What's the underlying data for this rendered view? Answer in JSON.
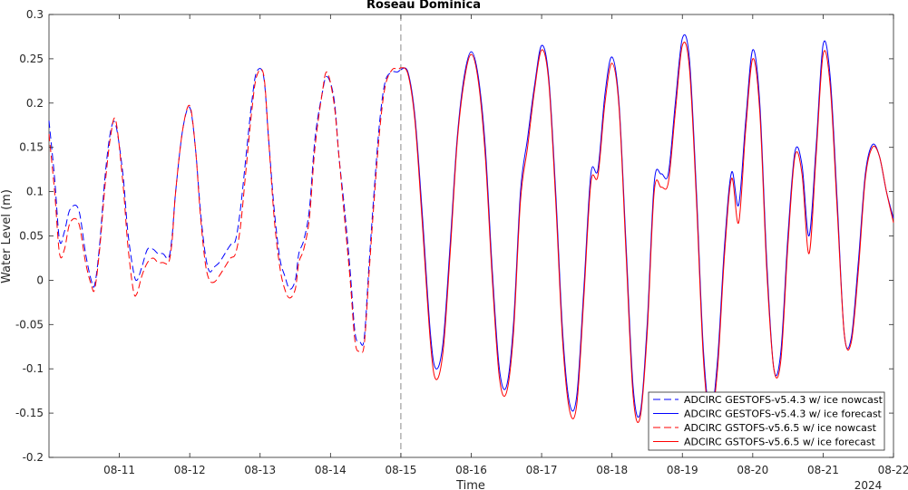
{
  "chart_data": {
    "type": "line",
    "title": "Roseau Dominica",
    "xlabel": "Time",
    "ylabel": "Water Level (m)",
    "ylim": [
      -0.2,
      0.3
    ],
    "yticks": [
      -0.2,
      -0.15,
      -0.1,
      -0.05,
      0,
      0.05,
      0.1,
      0.15,
      0.2,
      0.25,
      0.3
    ],
    "ytick_labels": [
      "-0.2",
      "-0.15",
      "-0.1",
      "-0.05",
      "0",
      "0.05",
      "0.1",
      "0.15",
      "0.2",
      "0.25",
      "0.3"
    ],
    "xlim": [
      10.0,
      22.0
    ],
    "xticks": [
      11,
      12,
      13,
      14,
      15,
      16,
      17,
      18,
      19,
      20,
      21,
      22
    ],
    "xtick_labels": [
      "08-11",
      "08-12",
      "08-13",
      "08-14",
      "08-15",
      "08-16",
      "08-17",
      "08-18",
      "08-19",
      "08-20",
      "08-21",
      "08-22"
    ],
    "x_secondary_label": "2024",
    "grid": false,
    "forecast_start_line": 15,
    "legend_position": "bottom-right",
    "series": [
      {
        "name": "ADCIRC GESTOFS-v5.4.3 w/ ice nowcast",
        "color": "#0000ff",
        "dash": "dashed",
        "x": [
          10.0,
          10.08,
          10.15,
          10.22,
          10.3,
          10.42,
          10.52,
          10.6,
          10.65,
          10.72,
          10.8,
          10.88,
          10.95,
          11.05,
          11.12,
          11.2,
          11.25,
          11.32,
          11.4,
          11.48,
          11.55,
          11.62,
          11.7,
          11.75,
          11.8,
          11.9,
          12.0,
          12.08,
          12.15,
          12.22,
          12.28,
          12.35,
          12.42,
          12.5,
          12.58,
          12.65,
          12.72,
          12.8,
          12.88,
          12.95,
          13.05,
          13.12,
          13.2,
          13.28,
          13.35,
          13.42,
          13.5,
          13.55,
          13.62,
          13.7,
          13.78,
          13.88,
          13.95,
          14.05,
          14.12,
          14.2,
          14.28,
          14.35,
          14.42,
          14.48,
          14.55,
          14.62,
          14.7,
          14.78,
          14.88,
          14.95,
          15.0
        ],
        "values": [
          0.18,
          0.115,
          0.045,
          0.055,
          0.08,
          0.08,
          0.03,
          0.0,
          -0.005,
          0.04,
          0.12,
          0.17,
          0.175,
          0.12,
          0.055,
          0.01,
          0.0,
          0.015,
          0.035,
          0.035,
          0.03,
          0.03,
          0.025,
          0.05,
          0.1,
          0.17,
          0.195,
          0.15,
          0.08,
          0.03,
          0.01,
          0.015,
          0.02,
          0.03,
          0.04,
          0.045,
          0.08,
          0.14,
          0.2,
          0.235,
          0.23,
          0.16,
          0.08,
          0.025,
          0.005,
          -0.01,
          0.0,
          0.03,
          0.045,
          0.08,
          0.16,
          0.21,
          0.23,
          0.205,
          0.14,
          0.08,
          0.01,
          -0.06,
          -0.07,
          -0.065,
          0.02,
          0.1,
          0.18,
          0.225,
          0.235,
          0.235,
          0.238
        ]
      },
      {
        "name": "ADCIRC GESTOFS-v5.4.3 w/ ice forecast",
        "color": "#0000ff",
        "dash": "solid",
        "x": [
          15.0,
          15.1,
          15.2,
          15.3,
          15.42,
          15.5,
          15.6,
          15.7,
          15.8,
          15.9,
          16.0,
          16.1,
          16.2,
          16.3,
          16.4,
          16.5,
          16.6,
          16.7,
          16.8,
          16.9,
          17.0,
          17.1,
          17.2,
          17.3,
          17.4,
          17.5,
          17.6,
          17.7,
          17.8,
          17.9,
          18.0,
          18.1,
          18.2,
          18.3,
          18.4,
          18.5,
          18.6,
          18.7,
          18.8,
          18.9,
          19.0,
          19.1,
          19.2,
          19.3,
          19.4,
          19.5,
          19.6,
          19.7,
          19.8,
          19.9,
          20.0,
          20.1,
          20.2,
          20.3,
          20.4,
          20.5,
          20.6,
          20.7,
          20.8,
          20.9,
          21.0,
          21.1,
          21.2,
          21.3,
          21.4,
          21.5,
          21.6,
          21.7,
          21.8,
          21.9,
          22.0
        ],
        "values": [
          0.238,
          0.235,
          0.185,
          0.08,
          -0.06,
          -0.1,
          -0.07,
          0.04,
          0.16,
          0.23,
          0.258,
          0.23,
          0.15,
          0.01,
          -0.1,
          -0.12,
          -0.05,
          0.1,
          0.16,
          0.22,
          0.265,
          0.23,
          0.1,
          -0.06,
          -0.14,
          -0.13,
          -0.01,
          0.12,
          0.125,
          0.21,
          0.252,
          0.2,
          0.04,
          -0.12,
          -0.15,
          -0.05,
          0.11,
          0.12,
          0.12,
          0.2,
          0.273,
          0.25,
          0.1,
          -0.08,
          -0.15,
          -0.09,
          0.04,
          0.122,
          0.085,
          0.18,
          0.26,
          0.2,
          0.02,
          -0.1,
          -0.08,
          0.05,
          0.145,
          0.13,
          0.05,
          0.15,
          0.266,
          0.23,
          0.09,
          -0.06,
          -0.065,
          0.02,
          0.12,
          0.153,
          0.14,
          0.1,
          0.07
        ]
      },
      {
        "name": "ADCIRC GSTOFS-v5.6.5 w/ ice nowcast",
        "color": "#ff0000",
        "dash": "dashed",
        "x": [
          10.0,
          10.08,
          10.15,
          10.22,
          10.3,
          10.42,
          10.52,
          10.6,
          10.65,
          10.72,
          10.8,
          10.88,
          10.95,
          11.05,
          11.12,
          11.2,
          11.25,
          11.32,
          11.4,
          11.48,
          11.55,
          11.62,
          11.7,
          11.75,
          11.8,
          11.9,
          12.0,
          12.08,
          12.15,
          12.22,
          12.28,
          12.35,
          12.42,
          12.5,
          12.58,
          12.65,
          12.72,
          12.8,
          12.88,
          12.95,
          13.05,
          13.12,
          13.2,
          13.28,
          13.35,
          13.42,
          13.5,
          13.55,
          13.62,
          13.7,
          13.78,
          13.88,
          13.95,
          14.05,
          14.12,
          14.2,
          14.28,
          14.35,
          14.42,
          14.48,
          14.55,
          14.62,
          14.7,
          14.78,
          14.88,
          14.95,
          15.0
        ],
        "values": [
          0.165,
          0.1,
          0.03,
          0.035,
          0.065,
          0.065,
          0.02,
          -0.005,
          -0.01,
          0.035,
          0.11,
          0.165,
          0.18,
          0.11,
          0.04,
          -0.012,
          -0.015,
          0.005,
          0.02,
          0.025,
          0.02,
          0.02,
          0.02,
          0.045,
          0.1,
          0.17,
          0.197,
          0.15,
          0.075,
          0.02,
          0.0,
          -0.002,
          0.005,
          0.015,
          0.025,
          0.03,
          0.06,
          0.125,
          0.19,
          0.23,
          0.232,
          0.16,
          0.07,
          0.015,
          -0.01,
          -0.02,
          -0.01,
          0.02,
          0.035,
          0.07,
          0.15,
          0.21,
          0.235,
          0.2,
          0.14,
          0.07,
          0.0,
          -0.07,
          -0.08,
          -0.072,
          0.01,
          0.09,
          0.17,
          0.22,
          0.238,
          0.238,
          0.24
        ]
      },
      {
        "name": "ADCIRC GSTOFS-v5.6.5 w/ ice forecast",
        "color": "#ff0000",
        "dash": "solid",
        "x": [
          15.0,
          15.1,
          15.2,
          15.3,
          15.42,
          15.5,
          15.6,
          15.7,
          15.8,
          15.9,
          16.0,
          16.1,
          16.2,
          16.3,
          16.4,
          16.5,
          16.6,
          16.7,
          16.8,
          16.9,
          17.0,
          17.1,
          17.2,
          17.3,
          17.4,
          17.5,
          17.6,
          17.7,
          17.8,
          17.9,
          18.0,
          18.1,
          18.2,
          18.3,
          18.4,
          18.5,
          18.6,
          18.7,
          18.8,
          18.9,
          19.0,
          19.1,
          19.2,
          19.3,
          19.4,
          19.5,
          19.6,
          19.7,
          19.8,
          19.9,
          20.0,
          20.1,
          20.2,
          20.3,
          20.4,
          20.5,
          20.6,
          20.7,
          20.8,
          20.9,
          21.0,
          21.1,
          21.2,
          21.3,
          21.4,
          21.5,
          21.6,
          21.7,
          21.8,
          21.9,
          22.0
        ],
        "values": [
          0.24,
          0.233,
          0.18,
          0.07,
          -0.07,
          -0.112,
          -0.08,
          0.03,
          0.155,
          0.225,
          0.255,
          0.225,
          0.14,
          0.0,
          -0.11,
          -0.127,
          -0.06,
          0.09,
          0.15,
          0.215,
          0.26,
          0.225,
          0.09,
          -0.07,
          -0.148,
          -0.14,
          -0.02,
          0.11,
          0.118,
          0.2,
          0.245,
          0.195,
          0.03,
          -0.13,
          -0.155,
          -0.06,
          0.1,
          0.105,
          0.11,
          0.19,
          0.265,
          0.24,
          0.09,
          -0.09,
          -0.155,
          -0.1,
          0.03,
          0.115,
          0.065,
          0.17,
          0.25,
          0.19,
          0.01,
          -0.1,
          -0.09,
          0.04,
          0.14,
          0.12,
          0.03,
          0.14,
          0.255,
          0.22,
          0.08,
          -0.06,
          -0.07,
          0.01,
          0.115,
          0.15,
          0.14,
          0.1,
          0.065
        ]
      }
    ]
  }
}
